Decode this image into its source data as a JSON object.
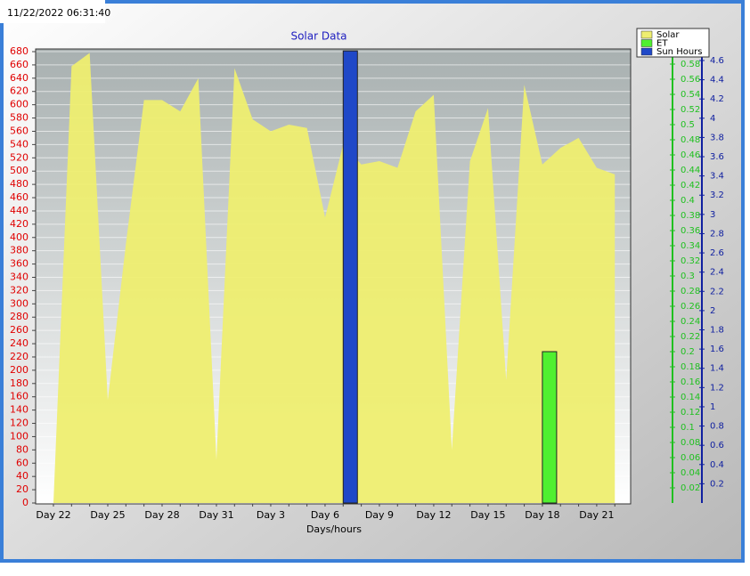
{
  "timestamp": "11/22/2022 06:31:40",
  "chart_data": {
    "type": "area-bar",
    "title": "Solar Data",
    "x_label": "Days/hours",
    "categories": [
      "Day 22",
      null,
      null,
      "Day 25",
      null,
      null,
      "Day 28",
      null,
      null,
      "Day 31",
      null,
      null,
      "Day 3",
      null,
      null,
      "Day 6",
      null,
      null,
      "Day 9",
      null,
      null,
      "Day 12",
      null,
      null,
      "Day 15",
      null,
      null,
      "Day 18",
      null,
      null,
      "Day 21",
      null
    ],
    "series": [
      {
        "name": "Solar",
        "type": "area",
        "axis": "y",
        "color": "#eeee70",
        "values": [
          0,
          658,
          678,
          155,
          390,
          607,
          607,
          590,
          640,
          65,
          655,
          578,
          560,
          570,
          565,
          430,
          540,
          510,
          515,
          505,
          590,
          615,
          80,
          515,
          595,
          185,
          630,
          510,
          535,
          550,
          505,
          495
        ]
      },
      {
        "name": "ET",
        "type": "bar",
        "axis": "y2",
        "color": "#50f030",
        "values": [
          null,
          null,
          null,
          null,
          null,
          null,
          null,
          null,
          null,
          null,
          null,
          null,
          null,
          null,
          null,
          null,
          null,
          null,
          null,
          null,
          null,
          null,
          null,
          null,
          null,
          null,
          null,
          0.2,
          null,
          null,
          null,
          null
        ]
      },
      {
        "name": "Sun Hours",
        "type": "bar",
        "axis": "y3",
        "color": "#1f48c8",
        "values": [
          null,
          null,
          null,
          null,
          null,
          null,
          null,
          null,
          null,
          null,
          null,
          null,
          null,
          null,
          null,
          null,
          4.7,
          null,
          null,
          null,
          null,
          null,
          null,
          null,
          null,
          null,
          null,
          null,
          null,
          null,
          null,
          null
        ]
      }
    ],
    "ylim": [
      0,
      680
    ],
    "yticks": [
      0,
      20,
      40,
      60,
      80,
      100,
      120,
      140,
      160,
      180,
      200,
      220,
      240,
      260,
      280,
      300,
      320,
      340,
      360,
      380,
      400,
      420,
      440,
      460,
      480,
      500,
      520,
      540,
      560,
      580,
      600,
      620,
      640,
      660,
      680
    ],
    "y2lim": [
      0,
      0.6
    ],
    "y2ticks": [
      0.02,
      0.04,
      0.06,
      0.08,
      0.1,
      0.12,
      0.14,
      0.16,
      0.18,
      0.2,
      0.22,
      0.24,
      0.26,
      0.28,
      0.3,
      0.32,
      0.34,
      0.36,
      0.38,
      0.4,
      0.42,
      0.44,
      0.46,
      0.48,
      0.5,
      0.52,
      0.54,
      0.56,
      0.58
    ],
    "y3lim": [
      0,
      4.72
    ],
    "y3ticks": [
      0.2,
      0.4,
      0.6,
      0.8,
      1,
      1.2,
      1.4,
      1.6,
      1.8,
      2,
      2.2,
      2.4,
      2.6,
      2.8,
      3,
      3.2,
      3.4,
      3.6,
      3.8,
      4,
      4.2,
      4.4,
      4.6
    ],
    "ytick_color": "#e00000",
    "y2tick_color": "#20c020",
    "y3tick_color": "#1020a0",
    "grid": true,
    "legend": "top-right"
  }
}
